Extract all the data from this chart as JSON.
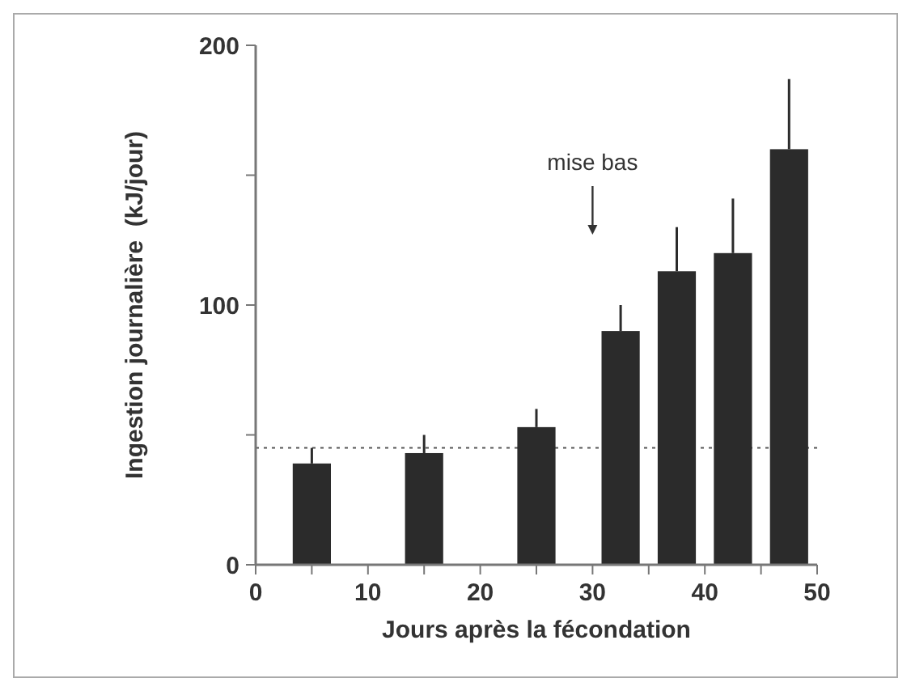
{
  "chart_data": {
    "type": "bar",
    "xlabel": "Jours après la fécondation",
    "ylabel": "Ingestion journalière  (kJ/jour)",
    "x": [
      5,
      15,
      25,
      32.5,
      37.5,
      42.5,
      47.5
    ],
    "values": [
      39,
      43,
      53,
      90,
      113,
      120,
      160
    ],
    "errors": [
      [
        39,
        45
      ],
      [
        43,
        50
      ],
      [
        53,
        60
      ],
      [
        90,
        100
      ],
      [
        113,
        130
      ],
      [
        120,
        141
      ],
      [
        160,
        187
      ]
    ],
    "color": "#2b2b2b",
    "xlim": [
      0,
      50
    ],
    "xticks": [
      0,
      {
        "value": 5,
        "label": null
      },
      10,
      {
        "value": 15,
        "label": null
      },
      20,
      {
        "value": 25,
        "label": null
      },
      30,
      {
        "value": 35,
        "label": null
      },
      40,
      {
        "value": 45,
        "label": null
      },
      50
    ],
    "ylim": [
      0,
      200
    ],
    "yticks": [
      0,
      {
        "value": 50,
        "label": null
      },
      100,
      {
        "value": 150,
        "label": null
      },
      200
    ],
    "ref_lines": [
      {
        "axis": "y",
        "value": 45,
        "line_style": "dotted",
        "color": "#555555"
      },
      {
        "axis": "x",
        "value": 30,
        "label": "mise bas",
        "color": "#333333"
      }
    ],
    "grid": false
  }
}
